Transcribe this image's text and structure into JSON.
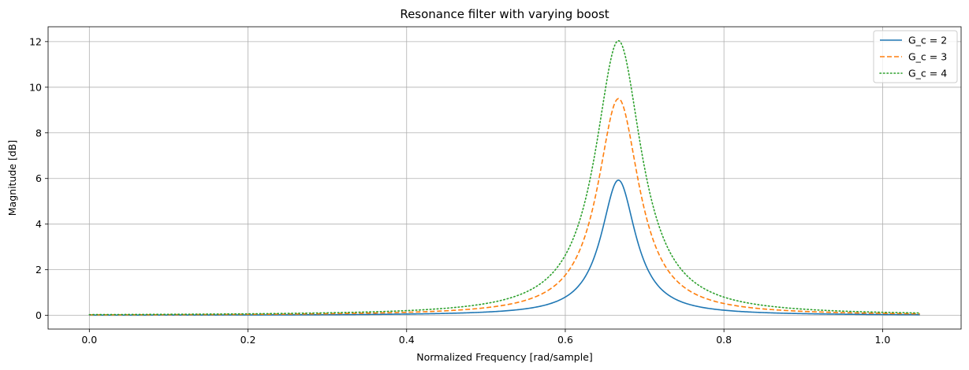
{
  "chart_data": {
    "type": "line",
    "title": "Resonance filter with varying boost",
    "xlabel": "Normalized Frequency [rad/sample]",
    "ylabel": "Magnitude [dB]",
    "xlim": [
      -0.052,
      1.099
    ],
    "ylim": [
      -0.6,
      12.65
    ],
    "xticks": [
      0.0,
      0.2,
      0.4,
      0.6,
      0.8,
      1.0
    ],
    "xtick_labels": [
      "0.0",
      "0.2",
      "0.4",
      "0.6",
      "0.8",
      "1.0"
    ],
    "yticks": [
      0,
      2,
      4,
      6,
      8,
      10,
      12
    ],
    "ytick_labels": [
      "0",
      "2",
      "4",
      "6",
      "8",
      "10",
      "12"
    ],
    "grid": true,
    "legend_position": "top-right",
    "model": {
      "x_start": 0.0,
      "x_end": 1.047,
      "center_frequency": 0.667
    },
    "series": [
      {
        "name": "G_c = 2",
        "peak_db": 5.93,
        "width": 0.0265,
        "color": "#1f77b4",
        "dash": "solid"
      },
      {
        "name": "G_c = 3",
        "peak_db": 9.5,
        "width": 0.032,
        "color": "#ff7f0e",
        "dash": "dashed"
      },
      {
        "name": "G_c = 4",
        "peak_db": 12.04,
        "width": 0.0355,
        "color": "#2ca02c",
        "dash": "dotted"
      }
    ]
  }
}
